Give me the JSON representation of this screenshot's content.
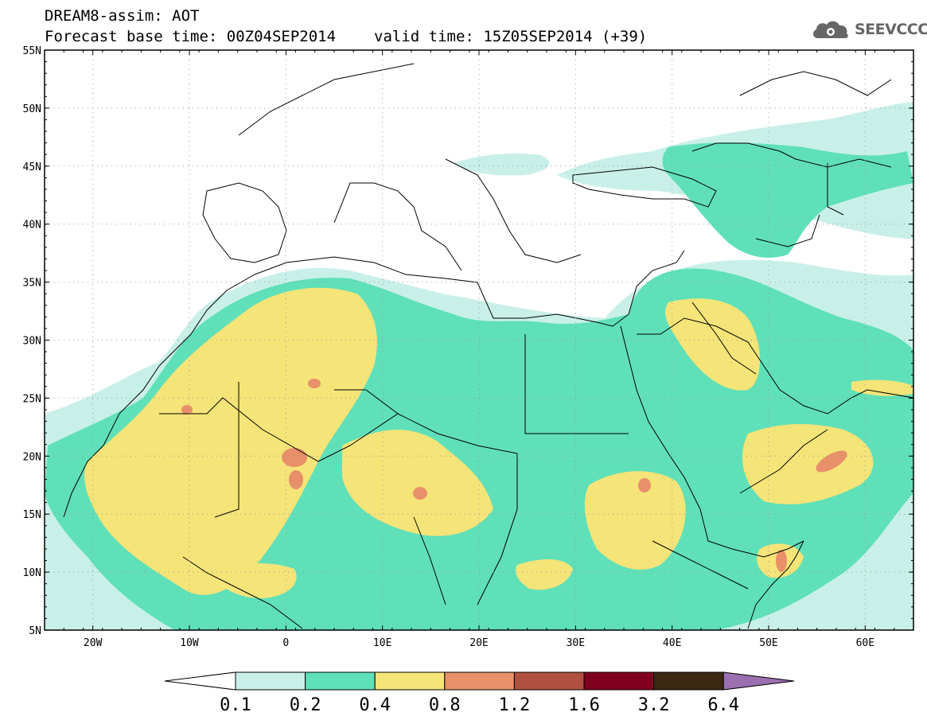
{
  "header": {
    "line1": "DREAM8-assim: AOT",
    "base_time": "Forecast base time: 00Z04SEP2014",
    "valid_time": "valid time: 15Z05SEP2014 (+39)"
  },
  "logo": {
    "icon": "cloud-gear-icon",
    "text": "SEEVCCC"
  },
  "map": {
    "lon_range": [
      -25,
      65
    ],
    "lat_range": [
      5,
      55
    ],
    "lat_labels": [
      "5N",
      "10N",
      "15N",
      "20N",
      "25N",
      "30N",
      "35N",
      "40N",
      "45N",
      "50N",
      "55N"
    ],
    "lon_labels": [
      "20W",
      "10W",
      "0",
      "10E",
      "20E",
      "30E",
      "40E",
      "50E",
      "60E"
    ],
    "grid": "dotted"
  },
  "colorbar": {
    "labels": [
      "0.1",
      "0.2",
      "0.4",
      "0.8",
      "1.2",
      "1.6",
      "3.2",
      "6.4"
    ],
    "colors": [
      "#ffffff",
      "#c8f0e8",
      "#5fe0b8",
      "#f5e478",
      "#e8906a",
      "#b05040",
      "#800020",
      "#3d2812",
      "#9c6fb0"
    ]
  },
  "colors": {
    "c1": "#c8f0e8",
    "c2": "#5fe0b8",
    "c3": "#f5e478",
    "c4": "#e8906a"
  }
}
